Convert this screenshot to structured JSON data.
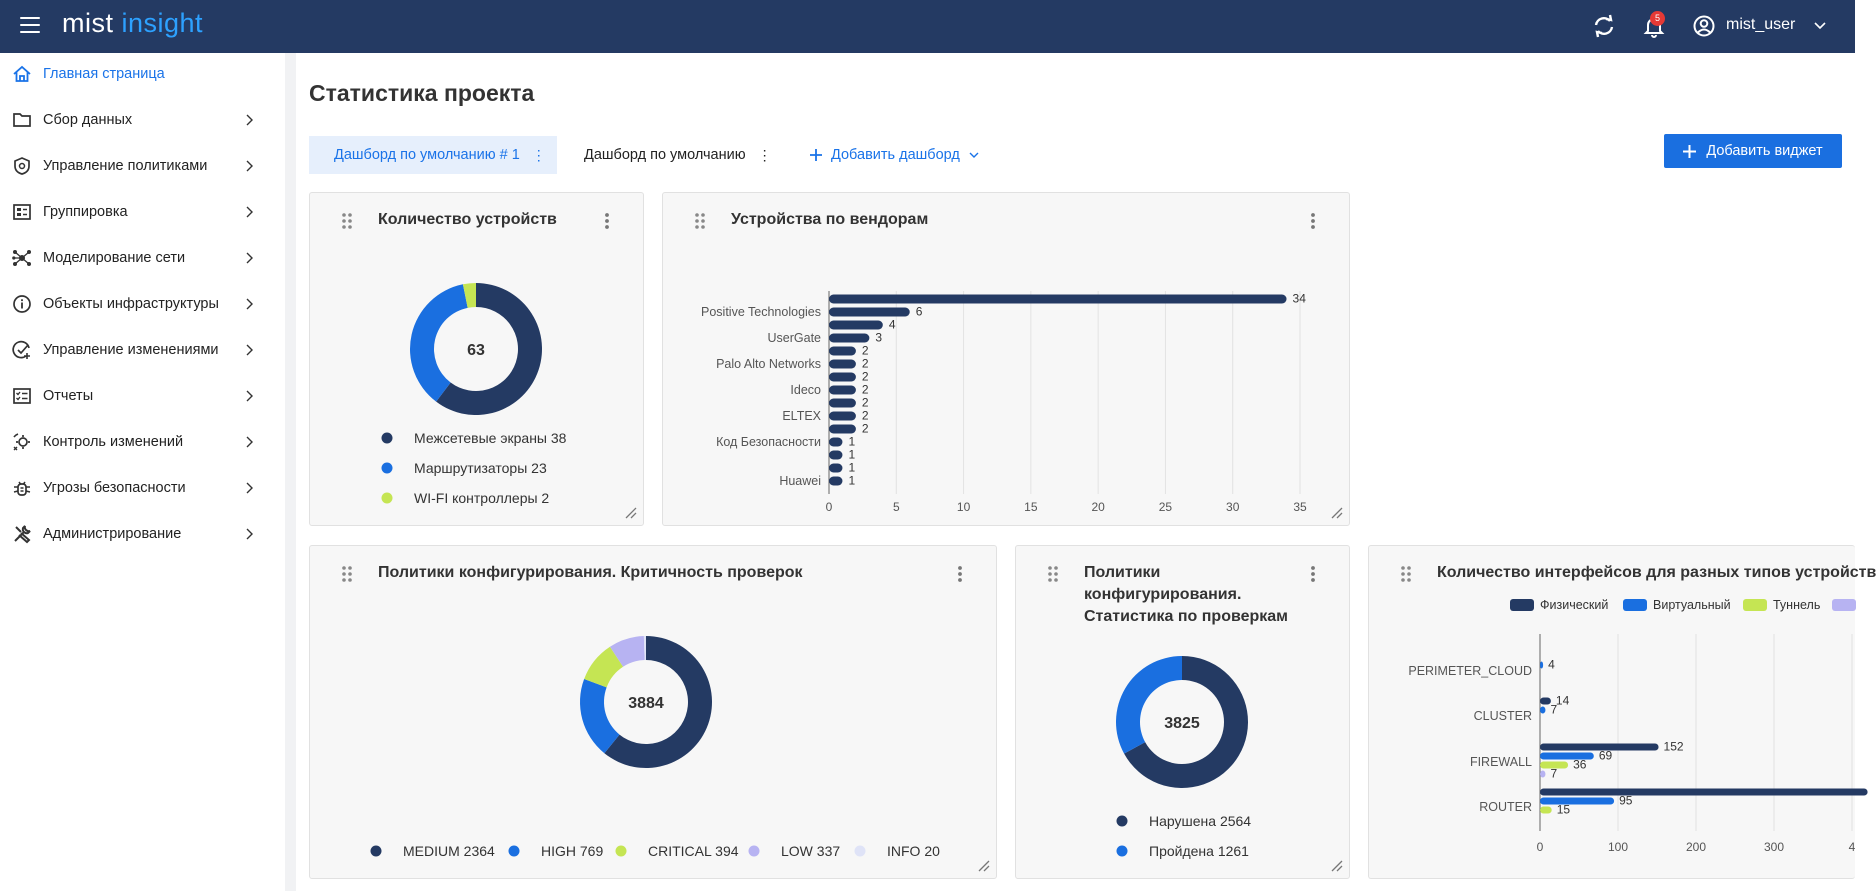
{
  "app": {
    "logo_left": "mist",
    "logo_right": "insight",
    "notification_count": "5",
    "username": "mist_user"
  },
  "sidebar": {
    "items": [
      {
        "label": "Главная страница",
        "icon": "home-icon",
        "active": true
      },
      {
        "label": "Сбор данных",
        "icon": "folder-icon"
      },
      {
        "label": "Управление политиками",
        "icon": "shield-icon"
      },
      {
        "label": "Группировка",
        "icon": "group-icon"
      },
      {
        "label": "Моделирование сети",
        "icon": "network-icon"
      },
      {
        "label": "Объекты инфраструктуры",
        "icon": "info-icon"
      },
      {
        "label": "Управление изменениями",
        "icon": "change-icon"
      },
      {
        "label": "Отчеты",
        "icon": "report-icon"
      },
      {
        "label": "Контроль изменений",
        "icon": "control-icon"
      },
      {
        "label": "Угрозы безопасности",
        "icon": "bug-icon"
      },
      {
        "label": "Администрирование",
        "icon": "tools-icon"
      }
    ]
  },
  "page": {
    "title": "Статистика проекта",
    "tabs": [
      "Дашборд по умолчанию # 1",
      "Дашборд по умолчанию"
    ],
    "add_dashboard": "Добавить дашборд",
    "add_widget": "Добавить виджет"
  },
  "colors": {
    "navy": "#243a63",
    "blue": "#1a6fe0",
    "lime": "#c5e553",
    "lavender": "#b7b3f2",
    "pale": "#dfe3f7"
  },
  "chart_data": [
    {
      "type": "pie",
      "title": "Количество устройств",
      "total": "63",
      "slices": [
        {
          "label": "Межсетевые экраны 38",
          "value": 38,
          "color": "#243a63"
        },
        {
          "label": "Маршрутизаторы 23",
          "value": 23,
          "color": "#1a6fe0"
        },
        {
          "label": "WI-FI контроллеры 2",
          "value": 2,
          "color": "#c5e553"
        }
      ]
    },
    {
      "type": "bar",
      "title": "Устройства по вендорам",
      "values": [
        34,
        6,
        4,
        3,
        2,
        2,
        2,
        2,
        2,
        2,
        2,
        1,
        1,
        1,
        1
      ],
      "tick_labels": [
        "Positive Technologies",
        "UserGate",
        "Palo Alto Networks",
        "Ideco",
        "ELTEX",
        "Код Безопасности",
        "Huawei"
      ],
      "tick_label_bar_index": [
        1,
        3,
        5,
        7,
        9,
        11,
        14
      ],
      "xticks": [
        0,
        5,
        10,
        15,
        20,
        25,
        30,
        35
      ],
      "xlim": [
        0,
        35
      ]
    },
    {
      "type": "pie",
      "title": "Политики конфигурирования. Критичность проверок",
      "total": "3884",
      "slices": [
        {
          "label": "MEDIUM 2364",
          "value": 2364,
          "color": "#243a63"
        },
        {
          "label": "HIGH 769",
          "value": 769,
          "color": "#1a6fe0"
        },
        {
          "label": "CRITICAL 394",
          "value": 394,
          "color": "#c5e553"
        },
        {
          "label": "LOW 337",
          "value": 337,
          "color": "#b7b3f2"
        },
        {
          "label": "INFO 20",
          "value": 20,
          "color": "#dfe3f7"
        }
      ]
    },
    {
      "type": "pie",
      "title": "Политики конфигурирования. Статистика по проверкам",
      "title_lines": [
        "Политики",
        "конфигурирования.",
        "Статистика по проверкам"
      ],
      "total": "3825",
      "slices": [
        {
          "label": "Нарушена 2564",
          "value": 2564,
          "color": "#243a63"
        },
        {
          "label": "Пройдена 1261",
          "value": 1261,
          "color": "#1a6fe0"
        }
      ]
    },
    {
      "type": "bar",
      "title": "Количество интерфейсов для разных типов устройств",
      "legend": [
        "Физический",
        "Виртуальный",
        "Туннель"
      ],
      "categories": [
        "PERIMETER_CLOUD",
        "CLUSTER",
        "FIREWALL",
        "ROUTER"
      ],
      "series": [
        {
          "name": "Физический",
          "color": "#243a63",
          "values": [
            null,
            14,
            152,
            420
          ],
          "labels": [
            "",
            "14",
            "152",
            ""
          ]
        },
        {
          "name": "Виртуальный",
          "color": "#1a6fe0",
          "values": [
            4,
            7,
            69,
            95
          ],
          "labels": [
            "4",
            "7",
            "69",
            "95"
          ]
        },
        {
          "name": "Туннель",
          "color": "#c5e553",
          "values": [
            null,
            null,
            36,
            15
          ],
          "labels": [
            "",
            "",
            "36",
            "15"
          ]
        },
        {
          "name": "",
          "color": "#b7b3f2",
          "values": [
            null,
            null,
            7,
            null
          ],
          "labels": [
            "",
            "",
            "7",
            ""
          ]
        }
      ],
      "xticks": [
        "0",
        "100",
        "200",
        "300",
        "4"
      ]
    }
  ]
}
